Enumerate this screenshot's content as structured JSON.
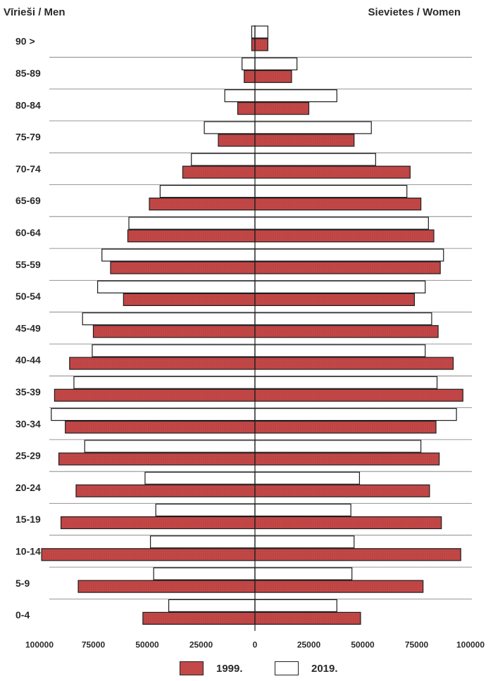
{
  "chart_data": {
    "type": "bar",
    "orientation": "horizontal-pyramid",
    "left_title": "Vīrieši / Men",
    "right_title": "Sievietes / Women",
    "categories": [
      "90 >",
      "85-89",
      "80-84",
      "75-79",
      "70-74",
      "65-69",
      "60-64",
      "55-59",
      "50-54",
      "45-49",
      "40-44",
      "35-39",
      "30-34",
      "25-29",
      "20-24",
      "15-19",
      "10-14",
      "5-9",
      "0-4"
    ],
    "x_ticks": [
      "100000",
      "75000",
      "50000",
      "25000",
      "0",
      "25000",
      "50000",
      "75000",
      "100000"
    ],
    "xlim": [
      -100000,
      100000
    ],
    "series": [
      {
        "name": "1999.",
        "color": "#c44848",
        "men": [
          1500,
          5000,
          8000,
          17000,
          33500,
          49000,
          59000,
          67000,
          61000,
          75000,
          86000,
          93000,
          88000,
          91000,
          83000,
          90000,
          99000,
          82000,
          52000
        ],
        "women": [
          6000,
          17000,
          25000,
          46000,
          72000,
          77000,
          83000,
          86000,
          74000,
          85000,
          92000,
          96500,
          84000,
          85500,
          81000,
          86500,
          95500,
          78000,
          49000
        ]
      },
      {
        "name": "2019.",
        "color": "#ffffff",
        "men": [
          1500,
          6000,
          14000,
          23500,
          29500,
          44000,
          58500,
          71000,
          73000,
          80000,
          75500,
          84000,
          94500,
          79000,
          51000,
          46000,
          48500,
          47000,
          40000
        ],
        "women": [
          6000,
          19500,
          38000,
          54000,
          56000,
          70500,
          80500,
          87500,
          79000,
          82000,
          79000,
          84500,
          93500,
          77000,
          48500,
          44500,
          46000,
          45000,
          38000
        ]
      }
    ],
    "legend": [
      "1999.",
      "2019."
    ],
    "legend_position": "bottom-center",
    "grid": "horizontal separators"
  }
}
